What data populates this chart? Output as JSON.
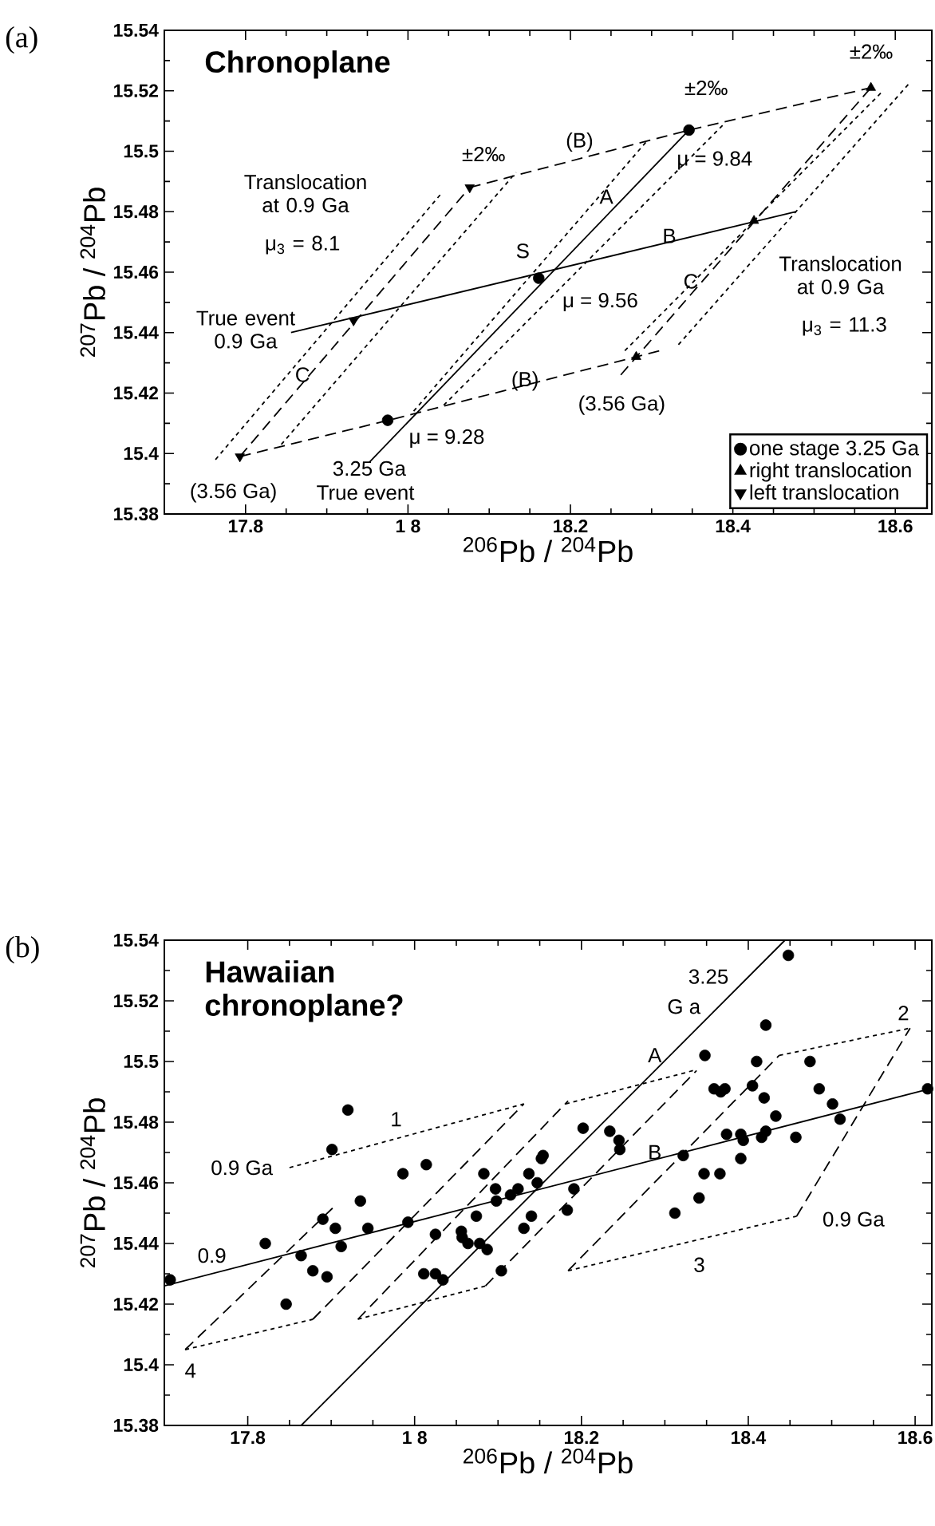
{
  "chart_data": [
    {
      "type": "scatter",
      "title": "Chronoplane",
      "xlabel": "$^{206}$Pb / $^{204}$Pb",
      "ylabel": "$^{207}$Pb / $^{204}$Pb",
      "xlim": [
        17.7,
        18.645
      ],
      "ylim": [
        15.38,
        15.54
      ],
      "xticks": [
        17.8,
        {
          "value": 18,
          "label": "1 8"
        },
        18.2,
        18.4,
        18.6
      ],
      "yticks": [
        15.38,
        15.4,
        15.42,
        15.44,
        15.46,
        15.48,
        15.5,
        15.52,
        15.54
      ],
      "legend": "bottom right",
      "series": [
        {
          "type": "line",
          "line_style": "solid",
          "color": "#000000",
          "x": [
            17.952,
            18.346
          ],
          "values": [
            15.397,
            15.507
          ]
        },
        {
          "type": "line",
          "line_style": "solid",
          "color": "#000000",
          "x": [
            17.856,
            18.478
          ],
          "values": [
            15.44,
            15.48
          ]
        },
        {
          "type": "line",
          "line_style": "dashed",
          "color": "#000000",
          "x": [
            17.793,
            18.076
          ],
          "values": [
            15.399,
            15.488
          ]
        },
        {
          "type": "line",
          "line_style": "dashed",
          "color": "#000000",
          "x": [
            18.262,
            18.57
          ],
          "values": [
            15.426,
            15.521
          ]
        },
        {
          "type": "line",
          "line_style": "dashed",
          "color": "#000000",
          "x": [
            18.076,
            18.346,
            18.57
          ],
          "values": [
            15.488,
            15.507,
            15.521
          ]
        },
        {
          "type": "line",
          "line_style": "dashed",
          "color": "#000000",
          "x": [
            17.793,
            17.976,
            18.281,
            18.31
          ],
          "values": [
            15.399,
            15.411,
            15.432,
            15.434
          ]
        },
        {
          "type": "line",
          "line_style": "dotted",
          "color": "#000000",
          "x": [
            17.763,
            18.041
          ],
          "values": [
            15.398,
            15.486
          ]
        },
        {
          "type": "line",
          "line_style": "dotted",
          "color": "#000000",
          "x": [
            17.844,
            18.133
          ],
          "values": [
            15.403,
            15.493
          ]
        },
        {
          "type": "line",
          "line_style": "dotted",
          "color": "#000000",
          "x": [
            18.007,
            18.293
          ],
          "values": [
            15.414,
            15.503
          ]
        },
        {
          "type": "line",
          "line_style": "dotted",
          "color": "#000000",
          "x": [
            18.044,
            18.389
          ],
          "values": [
            15.416,
            15.509
          ]
        },
        {
          "type": "line",
          "line_style": "dotted",
          "color": "#000000",
          "x": [
            18.267,
            18.585
          ],
          "values": [
            15.434,
            15.52
          ]
        },
        {
          "type": "line",
          "line_style": "dotted",
          "color": "#000000",
          "x": [
            18.333,
            18.619
          ],
          "values": [
            15.436,
            15.523
          ]
        },
        {
          "name": "one stage 3.25 Ga",
          "marker": "circle",
          "color": "#000000",
          "x": [
            17.975,
            18.161,
            18.346
          ],
          "values": [
            15.411,
            15.458,
            15.507
          ]
        },
        {
          "name": "right translocation",
          "marker": "triangle",
          "color": "#000000",
          "x": [
            18.281,
            18.426,
            18.57
          ],
          "values": [
            15.432,
            15.477,
            15.521
          ]
        },
        {
          "name": "left translocation",
          "marker": "triangle-down",
          "color": "#000000",
          "x": [
            17.793,
            17.933,
            18.076
          ],
          "values": [
            15.399,
            15.444,
            15.488
          ]
        }
      ],
      "annotations": [
        "(a)",
        "±2‰",
        "±2‰",
        "±2‰",
        "(B)",
        "(B)",
        "A",
        "B",
        "C",
        "C",
        "S",
        "Translocation at 0.9 Ga",
        "μ$_{3}$ = 8.1",
        "Translocation at 0.9 Ga",
        "μ$_{3}$ = 11.3",
        "μ = 9.84",
        "μ = 9.56",
        "μ = 9.28",
        "True event 0.9 Ga",
        "3.25 Ga",
        "(3.56 Ga)",
        "True event",
        "(3.56 Ga)"
      ]
    },
    {
      "type": "scatter",
      "title": "Hawaiian chronoplane?",
      "xlabel": "$^{206}$Pb / $^{204}$Pb",
      "ylabel": "$^{207}$Pb / $^{204}$Pb",
      "xlim": [
        17.7,
        18.62
      ],
      "ylim": [
        15.38,
        15.54
      ],
      "xticks": [
        17.8,
        {
          "value": 18,
          "label": "1 8"
        },
        18.2,
        18.4,
        18.6
      ],
      "yticks": [
        15.38,
        15.4,
        15.42,
        15.44,
        15.46,
        15.48,
        15.5,
        15.52,
        15.54
      ],
      "series": [
        {
          "type": "line",
          "line_style": "solid",
          "color": "#000000",
          "x": [
            17.864,
            18.444
          ],
          "values": [
            15.38,
            15.54
          ]
        },
        {
          "type": "line",
          "line_style": "solid",
          "color": "#000000",
          "x": [
            17.7,
            18.618
          ],
          "values": [
            15.426,
            15.491
          ]
        },
        {
          "type": "line",
          "line_style": "dotted",
          "color": "#000000",
          "x": [
            17.85,
            18.131
          ],
          "values": [
            15.465,
            15.486
          ]
        },
        {
          "type": "line",
          "line_style": "dotted",
          "color": "#000000",
          "x": [
            18.181,
            18.334
          ],
          "values": [
            15.486,
            15.497
          ]
        },
        {
          "type": "line",
          "line_style": "dotted",
          "color": "#000000",
          "x": [
            18.437,
            18.594
          ],
          "values": [
            15.502,
            15.511
          ]
        },
        {
          "type": "line",
          "line_style": "dotted",
          "color": "#000000",
          "x": [
            17.725,
            17.878
          ],
          "values": [
            15.405,
            15.415
          ]
        },
        {
          "type": "line",
          "line_style": "dotted",
          "color": "#000000",
          "x": [
            17.932,
            18.085
          ],
          "values": [
            15.415,
            15.426
          ]
        },
        {
          "type": "line",
          "line_style": "dotted",
          "color": "#000000",
          "x": [
            18.184,
            18.458
          ],
          "values": [
            15.431,
            15.449
          ]
        },
        {
          "type": "line",
          "line_style": "dashed",
          "color": "#000000",
          "x": [
            17.725,
            17.903
          ],
          "values": [
            15.405,
            15.452
          ]
        },
        {
          "type": "line",
          "line_style": "dashed",
          "color": "#000000",
          "x": [
            17.878,
            18.131
          ],
          "values": [
            15.415,
            15.486
          ]
        },
        {
          "type": "line",
          "line_style": "dashed",
          "color": "#000000",
          "x": [
            17.932,
            18.184
          ],
          "values": [
            15.415,
            15.487
          ]
        },
        {
          "type": "line",
          "line_style": "dashed",
          "color": "#000000",
          "x": [
            18.085,
            18.338
          ],
          "values": [
            15.426,
            15.497
          ]
        },
        {
          "type": "line",
          "line_style": "dashed",
          "color": "#000000",
          "x": [
            18.184,
            18.437
          ],
          "values": [
            15.431,
            15.502
          ]
        },
        {
          "type": "line",
          "line_style": "dashed",
          "color": "#000000",
          "x": [
            18.458,
            18.594
          ],
          "values": [
            15.449,
            15.511
          ]
        },
        {
          "marker": "circle",
          "color": "#000000",
          "x": [
            17.707,
            17.821,
            17.846,
            17.864,
            17.878,
            17.89,
            17.895,
            17.905,
            17.912,
            17.901,
            17.92,
            17.935,
            17.944,
            17.986,
            17.992,
            18.014,
            18.025,
            18.011,
            18.025,
            18.034,
            18.056,
            18.057,
            18.064,
            18.074,
            18.083,
            18.078,
            18.087,
            18.097,
            18.098,
            18.104,
            18.115,
            18.124,
            18.131,
            18.137,
            18.14,
            18.147,
            18.152,
            18.154,
            18.183,
            18.191,
            18.202,
            18.234,
            18.245,
            18.246,
            18.312,
            18.322,
            18.341,
            18.347,
            18.348,
            18.359,
            18.366,
            18.367,
            18.372,
            18.374,
            18.391,
            18.391,
            18.394,
            18.405,
            18.41,
            18.416,
            18.419,
            18.421,
            18.421,
            18.433,
            18.448,
            18.457,
            18.474,
            18.485,
            18.501,
            18.51,
            18.615
          ],
          "values": [
            15.428,
            15.44,
            15.42,
            15.436,
            15.431,
            15.448,
            15.429,
            15.445,
            15.439,
            15.471,
            15.484,
            15.454,
            15.445,
            15.463,
            15.447,
            15.466,
            15.443,
            15.43,
            15.43,
            15.428,
            15.444,
            15.442,
            15.44,
            15.449,
            15.463,
            15.44,
            15.438,
            15.458,
            15.454,
            15.431,
            15.456,
            15.458,
            15.445,
            15.463,
            15.449,
            15.46,
            15.468,
            15.469,
            15.451,
            15.458,
            15.478,
            15.477,
            15.474,
            15.471,
            15.45,
            15.469,
            15.455,
            15.463,
            15.502,
            15.491,
            15.463,
            15.49,
            15.491,
            15.476,
            15.476,
            15.468,
            15.474,
            15.492,
            15.5,
            15.475,
            15.488,
            15.512,
            15.477,
            15.482,
            15.535,
            15.475,
            15.5,
            15.491,
            15.486,
            15.481,
            15.491
          ]
        }
      ],
      "annotations": [
        "(b)",
        "3.25",
        "G a",
        "A",
        "B",
        "1",
        "2",
        "3",
        "4",
        "0.9 Ga",
        "0.9 Ga",
        "0.9"
      ]
    }
  ]
}
